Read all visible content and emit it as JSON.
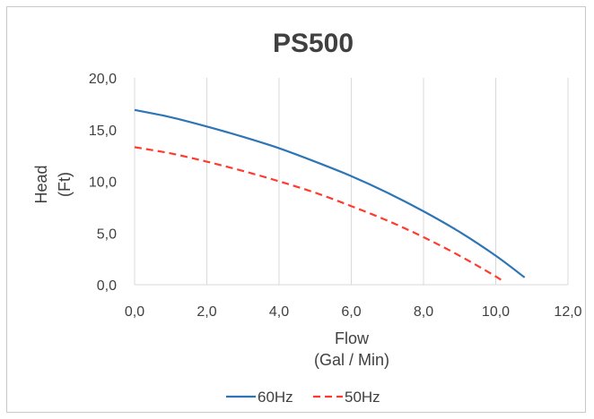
{
  "chart_data": {
    "type": "line",
    "title": "PS500",
    "xlabel": [
      "Flow",
      "(Gal / Min)"
    ],
    "ylabel": [
      "Head",
      "(Ft)"
    ],
    "xlim": [
      0,
      12
    ],
    "ylim": [
      0,
      20
    ],
    "xticks": [
      "0,0",
      "2,0",
      "4,0",
      "6,0",
      "8,0",
      "10,0",
      "12,0"
    ],
    "yticks": [
      "0,0",
      "5,0",
      "10,0",
      "15,0",
      "20,0"
    ],
    "x_tick_values": [
      0,
      2,
      4,
      6,
      8,
      10,
      12
    ],
    "y_tick_values": [
      0,
      5,
      10,
      15,
      20
    ],
    "grid": "vertical",
    "legend_position": "bottom",
    "series": [
      {
        "name": "60Hz",
        "color": "#2e75b6",
        "dash": "solid",
        "x": [
          0,
          1,
          2,
          3,
          4,
          5,
          6,
          7,
          8,
          9,
          10,
          10.8
        ],
        "y": [
          16.9,
          16.2,
          15.3,
          14.3,
          13.2,
          11.9,
          10.5,
          8.9,
          7.1,
          5.1,
          2.8,
          0.7
        ]
      },
      {
        "name": "50Hz",
        "color": "#ff3b30",
        "dash": "dashed",
        "x": [
          0,
          1,
          2,
          3,
          4,
          5,
          6,
          7,
          8,
          9,
          10,
          10.2
        ],
        "y": [
          13.3,
          12.7,
          11.9,
          11.0,
          10.0,
          8.9,
          7.6,
          6.2,
          4.6,
          2.8,
          0.8,
          0.3
        ]
      }
    ]
  }
}
